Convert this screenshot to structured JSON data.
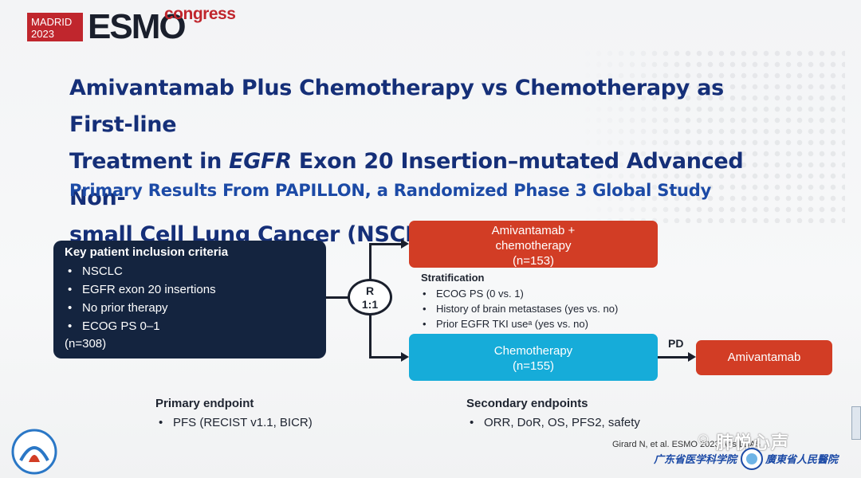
{
  "header": {
    "city": "MADRID",
    "year": "2023",
    "brand": "ESMO",
    "brand_suffix": "congress"
  },
  "title": {
    "line1": "Amivantamab Plus Chemotherapy vs Chemotherapy as First-line",
    "line2_prefix": "Treatment in ",
    "line2_italic": "EGFR",
    "line2_suffix": " Exon 20 Insertion–mutated Advanced Non-",
    "line3": "small Cell Lung Cancer (NSCLC)",
    "subtitle": "Primary Results From PAPILLON, a Randomized Phase 3 Global Study"
  },
  "inclusion": {
    "heading": "Key patient inclusion criteria",
    "items": [
      "NSCLC",
      "EGFR exon 20 insertions",
      "No prior therapy",
      "ECOG PS 0–1"
    ],
    "n": "(n=308)"
  },
  "randomization": {
    "letter": "R",
    "ratio": "1:1"
  },
  "arms": {
    "arm1_line1": "Amivantamab +",
    "arm1_line2": "chemotherapy",
    "arm1_n": "(n=153)",
    "arm2_line1": "Chemotherapy",
    "arm2_n": "(n=155)",
    "crossover_label": "PD",
    "crossover_arm": "Amivantamab"
  },
  "stratification": {
    "heading": "Stratification",
    "items": [
      "ECOG PS (0 vs. 1)",
      "History of brain metastases (yes vs. no)",
      "Prior EGFR TKI useᵃ (yes vs. no)"
    ]
  },
  "primary_endpoint": {
    "heading": "Primary endpoint",
    "items": [
      "PFS (RECIST v1.1, BICR)"
    ]
  },
  "secondary_endpoints": {
    "heading": "Secondary endpoints",
    "items": [
      "ORR, DoR, OS, PFS2, safety"
    ]
  },
  "footer": {
    "citation": "Girard N, et al. ESMO 2023 Abs LBA5",
    "watermark": "肺悦心声",
    "institution_left": "广东省医学科学院",
    "institution_right": "廣東省人民醫院"
  },
  "colors": {
    "title": "#152f78",
    "subtitle": "#1c4aa6",
    "box_dark": "#14243f",
    "arm_red": "#d23d25",
    "arm_blue": "#16acd9",
    "brand_red": "#c0262d"
  }
}
